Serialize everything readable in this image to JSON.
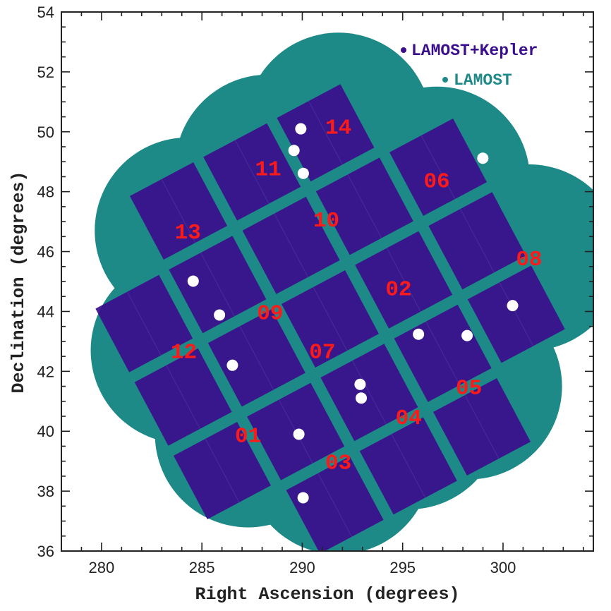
{
  "chart_data": {
    "type": "scatter",
    "title": "",
    "xlabel": "Right Ascension (degrees)",
    "ylabel": "Declination (degrees)",
    "xlim": [
      278,
      304.5
    ],
    "ylim": [
      36,
      54
    ],
    "x_ticks": [
      "280",
      "285",
      "290",
      "295",
      "300"
    ],
    "y_ticks": [
      "36",
      "38",
      "40",
      "42",
      "44",
      "46",
      "48",
      "50",
      "52",
      "54"
    ],
    "grid": false,
    "legend_position": "top-right",
    "series": [
      {
        "name": "LAMOST+Kepler",
        "color": "#3a0e8c"
      },
      {
        "name": "LAMOST",
        "color": "#1e8a88"
      }
    ],
    "label_color": "#ff1a1a",
    "fields": [
      {
        "id": "01",
        "ra": 287.3,
        "dec": 39.9
      },
      {
        "id": "02",
        "ra": 294.8,
        "dec": 44.8
      },
      {
        "id": "03",
        "ra": 291.8,
        "dec": 39.0
      },
      {
        "id": "04",
        "ra": 295.3,
        "dec": 40.5
      },
      {
        "id": "05",
        "ra": 298.3,
        "dec": 41.5
      },
      {
        "id": "06",
        "ra": 296.7,
        "dec": 48.4
      },
      {
        "id": "07",
        "ra": 291.0,
        "dec": 42.7
      },
      {
        "id": "08",
        "ra": 301.3,
        "dec": 45.8
      },
      {
        "id": "09",
        "ra": 288.4,
        "dec": 44.0
      },
      {
        "id": "10",
        "ra": 291.2,
        "dec": 47.1
      },
      {
        "id": "11",
        "ra": 288.3,
        "dec": 48.8
      },
      {
        "id": "12",
        "ra": 284.1,
        "dec": 42.7
      },
      {
        "id": "13",
        "ra": 284.3,
        "dec": 46.7
      },
      {
        "id": "14",
        "ra": 291.8,
        "dec": 50.2
      }
    ]
  }
}
